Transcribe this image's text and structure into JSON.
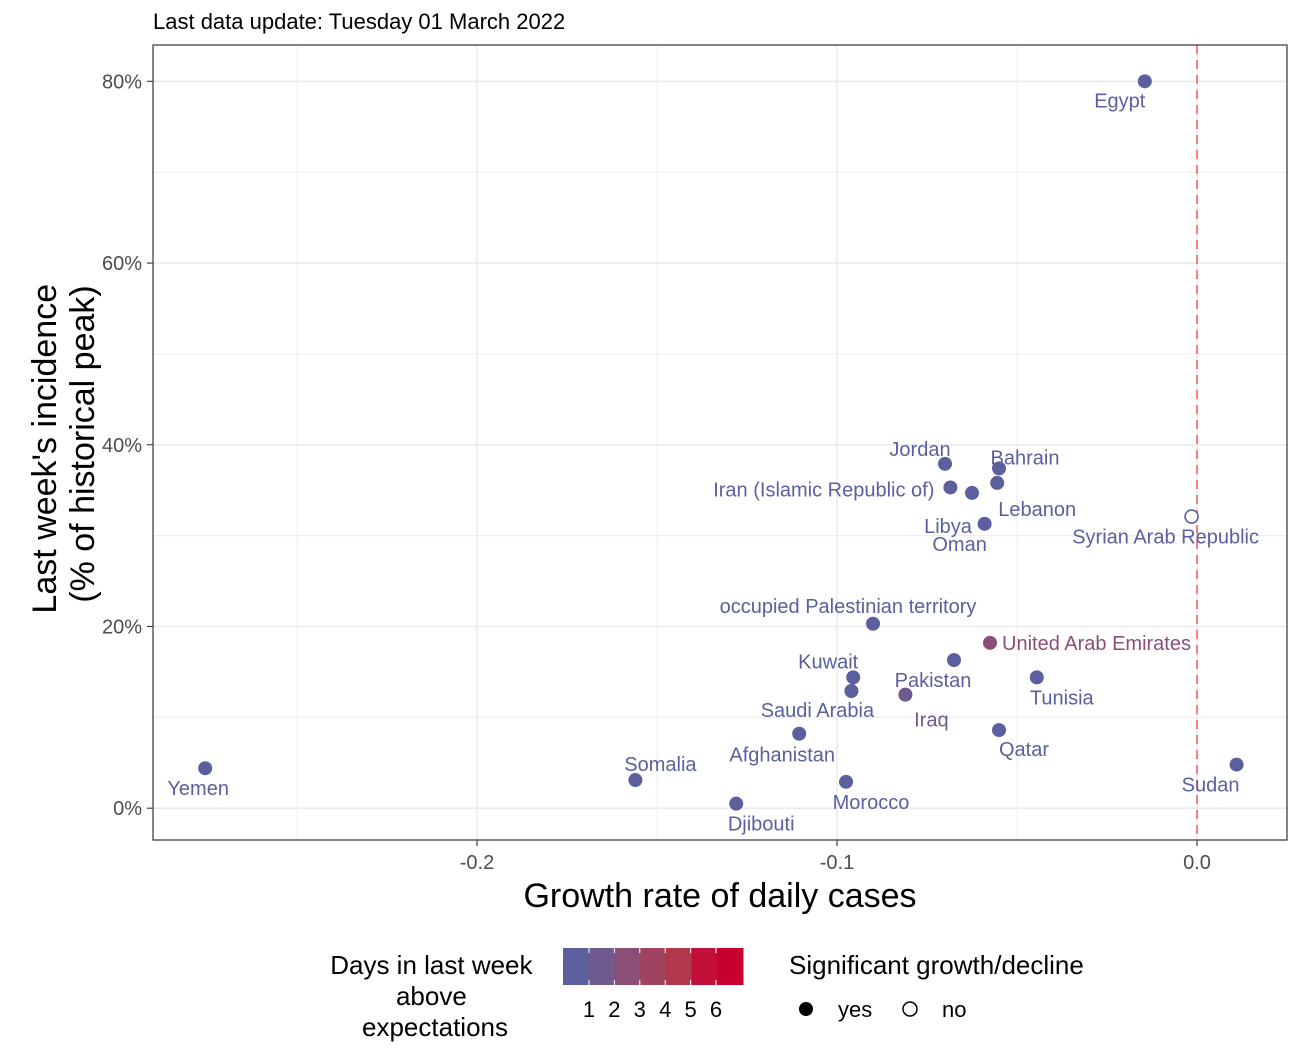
{
  "chart_data": {
    "type": "scatter",
    "subtitle": "Last data update: Tuesday 01 March 2022",
    "xlabel": "Growth rate of daily cases",
    "ylabel_lines": [
      "Last week's incidence",
      "(% of historical peak)"
    ],
    "xlim": [
      -0.29,
      0.025
    ],
    "ylim": [
      -3.5,
      84
    ],
    "x_ticks": [
      {
        "value": -0.2,
        "label": "-0.2"
      },
      {
        "value": -0.1,
        "label": "-0.1"
      },
      {
        "value": 0.0,
        "label": "0.0"
      }
    ],
    "y_ticks": [
      {
        "value": 0,
        "label": "0%"
      },
      {
        "value": 20,
        "label": "20%"
      },
      {
        "value": 40,
        "label": "40%"
      },
      {
        "value": 60,
        "label": "60%"
      },
      {
        "value": 80,
        "label": "80%"
      }
    ],
    "reference_line": {
      "x": 0,
      "color": "#f8766d",
      "style": "dashed"
    },
    "grid": true,
    "points": [
      {
        "name": "Egypt",
        "x": -0.0145,
        "y": 80.0,
        "days": 1,
        "significant": true
      },
      {
        "name": "Jordan",
        "x": -0.07,
        "y": 37.9,
        "days": 1,
        "significant": true
      },
      {
        "name": "Bahrain",
        "x": -0.055,
        "y": 37.4,
        "days": 1,
        "significant": true
      },
      {
        "name": "Lebanon",
        "x": -0.0555,
        "y": 35.8,
        "days": 1,
        "significant": true
      },
      {
        "name": "Iran (Islamic Republic of)",
        "x": -0.0685,
        "y": 35.3,
        "days": 1,
        "significant": true
      },
      {
        "name": "Libya",
        "x": -0.0625,
        "y": 34.7,
        "days": 1,
        "significant": true
      },
      {
        "name": "Oman",
        "x": -0.059,
        "y": 31.3,
        "days": 1,
        "significant": true
      },
      {
        "name": "Syrian Arab Republic",
        "x": -0.0015,
        "y": 32.1,
        "days": 1,
        "significant": false
      },
      {
        "name": "occupied Palestinian territory",
        "x": -0.09,
        "y": 20.3,
        "days": 1,
        "significant": true
      },
      {
        "name": "United Arab Emirates",
        "x": -0.0575,
        "y": 18.2,
        "days": 3,
        "significant": true
      },
      {
        "name": "Pakistan",
        "x": -0.0675,
        "y": 16.3,
        "days": 1,
        "significant": true
      },
      {
        "name": "Kuwait",
        "x": -0.0955,
        "y": 14.4,
        "days": 1,
        "significant": true
      },
      {
        "name": "Tunisia",
        "x": -0.0445,
        "y": 14.4,
        "days": 1,
        "significant": true
      },
      {
        "name": "Iraq",
        "x": -0.081,
        "y": 12.5,
        "days": 2,
        "significant": true
      },
      {
        "name": "Saudi Arabia",
        "x": -0.096,
        "y": 12.9,
        "days": 1,
        "significant": true
      },
      {
        "name": "Qatar",
        "x": -0.055,
        "y": 8.6,
        "days": 1,
        "significant": true
      },
      {
        "name": "Afghanistan",
        "x": -0.1105,
        "y": 8.2,
        "days": 1,
        "significant": true
      },
      {
        "name": "Yemen",
        "x": -0.2755,
        "y": 4.4,
        "days": 1,
        "significant": true
      },
      {
        "name": "Sudan",
        "x": 0.011,
        "y": 4.8,
        "days": 1,
        "significant": true
      },
      {
        "name": "Somalia",
        "x": -0.156,
        "y": 3.1,
        "days": 1,
        "significant": true
      },
      {
        "name": "Morocco",
        "x": -0.0975,
        "y": 2.9,
        "days": 1,
        "significant": true
      },
      {
        "name": "Djibouti",
        "x": -0.128,
        "y": 0.5,
        "days": 1,
        "significant": true
      }
    ],
    "color_legend": {
      "title_lines": [
        "Days in last week",
        "above",
        "expectations"
      ],
      "labels": [
        "1",
        "2",
        "3",
        "4",
        "5",
        "6"
      ],
      "colors": [
        "#5b5f9e",
        "#6f5a8e",
        "#8a4e77",
        "#a04361",
        "#b2384c",
        "#c2103a",
        "#c8002f"
      ]
    },
    "shape_legend": {
      "title": "Significant growth/decline",
      "items": [
        {
          "label": "yes",
          "filled": true
        },
        {
          "label": "no",
          "filled": false
        }
      ]
    }
  }
}
